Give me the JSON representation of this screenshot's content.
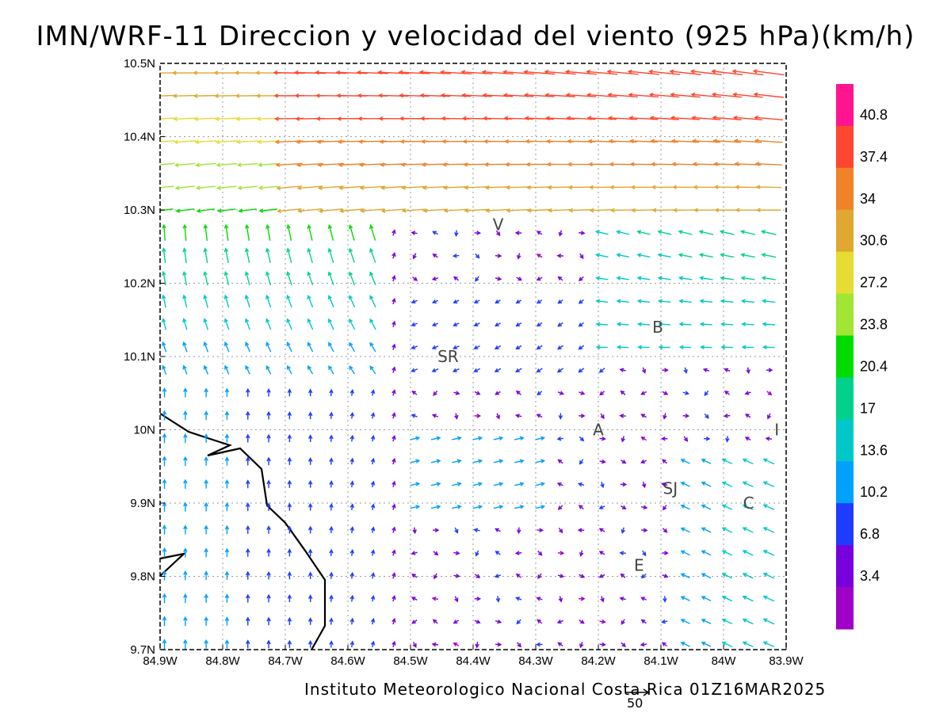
{
  "chart_data": {
    "type": "vector_field",
    "title": "IMN/WRF-11 Direccion y velocidad del viento (925 hPa)(km/h)",
    "footer": "Instituto Meteorologico Nacional Costa Rica 01Z16MAR2025",
    "reference_vector": {
      "label": "50",
      "magnitude": 50
    },
    "x_ticks": [
      "84.9W",
      "84.8W",
      "84.7W",
      "84.6W",
      "84.5W",
      "84.4W",
      "84.3W",
      "84.2W",
      "84.1W",
      "84W",
      "83.9W"
    ],
    "y_ticks": [
      "10.5N",
      "10.4N",
      "10.3N",
      "10.2N",
      "10.1N",
      "10N",
      "9.9N",
      "9.8N",
      "9.7N"
    ],
    "xlim": [
      -84.9,
      -83.9
    ],
    "ylim": [
      9.7,
      10.5
    ],
    "grid": true,
    "colorbar": {
      "labels": [
        "40.8",
        "37.4",
        "34",
        "30.6",
        "27.2",
        "23.8",
        "20.4",
        "17",
        "13.6",
        "10.2",
        "6.8",
        "3.4"
      ],
      "colors": [
        "#ff1490",
        "#ff4630",
        "#f0822a",
        "#e0a830",
        "#e6dc32",
        "#a0e632",
        "#00dc00",
        "#00d28c",
        "#00c8c8",
        "#00a0ff",
        "#1e3cff",
        "#7800dc",
        "#a000c8"
      ]
    },
    "stations": [
      {
        "label": "V",
        "lon": -84.36,
        "lat": 10.28
      },
      {
        "label": "B",
        "lon": -84.105,
        "lat": 10.14
      },
      {
        "label": "SR",
        "lon": -84.44,
        "lat": 10.1
      },
      {
        "label": "A",
        "lon": -84.2,
        "lat": 10.0
      },
      {
        "label": "I",
        "lon": -83.915,
        "lat": 10.0
      },
      {
        "label": "SJ",
        "lon": -84.085,
        "lat": 9.92
      },
      {
        "label": "C",
        "lon": -83.96,
        "lat": 9.9
      },
      {
        "label": "E",
        "lon": -84.135,
        "lat": 9.815
      }
    ]
  }
}
